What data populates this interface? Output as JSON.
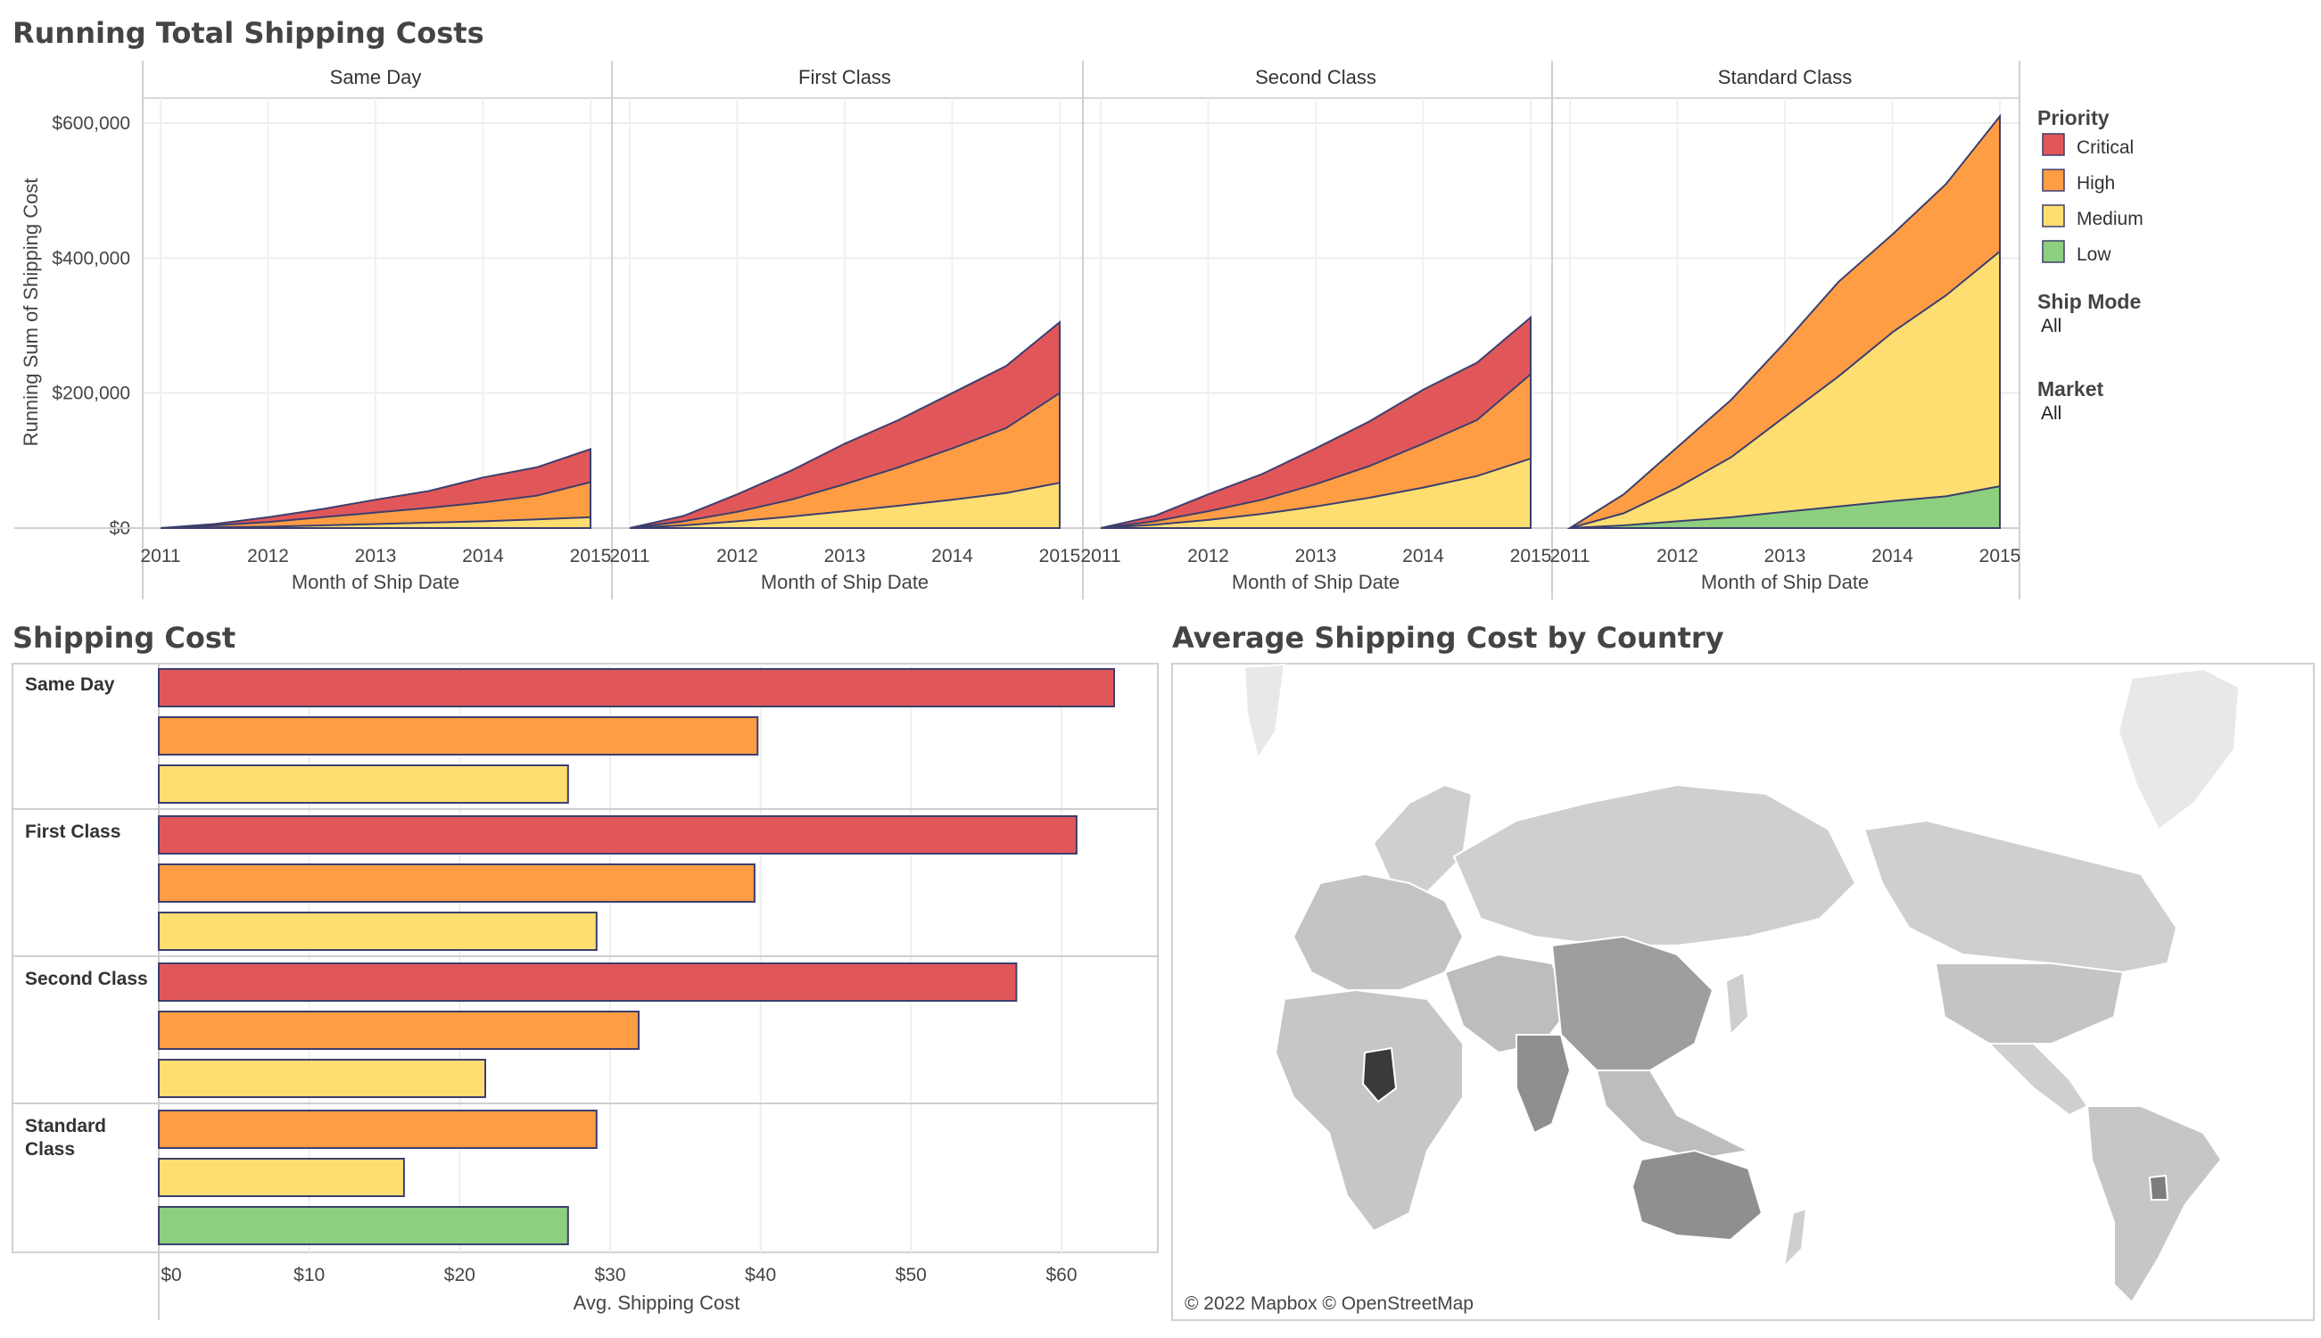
{
  "dashboard": {
    "running_total_title": "Running Total Shipping Costs",
    "shipping_cost_title": "Shipping Cost",
    "map_title": "Average Shipping Cost by Country",
    "map_attribution": "© 2022 Mapbox © OpenStreetMap",
    "colors": {
      "Critical": "#e15759",
      "High": "#ff9d45",
      "Medium": "#ffde71",
      "Low": "#8dcf7e",
      "outline": "#3b3f6e"
    }
  },
  "legend": {
    "title": "Priority",
    "items": [
      "Critical",
      "High",
      "Medium",
      "Low"
    ],
    "filters": [
      {
        "label": "Ship Mode",
        "value": "All"
      },
      {
        "label": "Market",
        "value": "All"
      }
    ]
  },
  "chart_data": [
    {
      "type": "area",
      "title": "Running Total Shipping Costs",
      "stacked": true,
      "xlabel": "Month of Ship Date",
      "ylabel": "Running Sum of Shipping Cost",
      "y_ticks": [
        "$0",
        "$200,000",
        "$400,000",
        "$600,000"
      ],
      "ylim": [
        0,
        600000
      ],
      "x_ticks": [
        "2011",
        "2012",
        "2013",
        "2014",
        "2015"
      ],
      "x": [
        "2011-01",
        "2011-07",
        "2012-01",
        "2012-07",
        "2013-01",
        "2013-07",
        "2014-01",
        "2014-07",
        "2015-01"
      ],
      "panels": [
        {
          "name": "Same Day",
          "series": [
            {
              "name": "Medium",
              "values": [
                0,
                1000,
                2000,
                4000,
                6000,
                8000,
                10000,
                13000,
                16000
              ]
            },
            {
              "name": "High",
              "values": [
                0,
                4000,
                9000,
                16000,
                23000,
                30000,
                38000,
                48000,
                68000
              ]
            },
            {
              "name": "Critical",
              "values": [
                0,
                6000,
                16000,
                28000,
                42000,
                55000,
                75000,
                90000,
                117000
              ]
            }
          ]
        },
        {
          "name": "First Class",
          "series": [
            {
              "name": "Medium",
              "values": [
                0,
                4000,
                10000,
                17000,
                25000,
                33000,
                42000,
                52000,
                67000
              ]
            },
            {
              "name": "High",
              "values": [
                0,
                10000,
                24000,
                42000,
                65000,
                90000,
                118000,
                148000,
                200000
              ]
            },
            {
              "name": "Critical",
              "values": [
                0,
                18000,
                50000,
                85000,
                125000,
                160000,
                200000,
                240000,
                305000
              ]
            }
          ]
        },
        {
          "name": "Second Class",
          "series": [
            {
              "name": "Medium",
              "values": [
                0,
                5000,
                12000,
                21000,
                32000,
                45000,
                60000,
                77000,
                103000
              ]
            },
            {
              "name": "High",
              "values": [
                0,
                10000,
                25000,
                42000,
                65000,
                92000,
                125000,
                160000,
                228000
              ]
            },
            {
              "name": "Critical",
              "values": [
                0,
                18000,
                50000,
                80000,
                118000,
                158000,
                205000,
                245000,
                312000
              ]
            }
          ]
        },
        {
          "name": "Standard Class",
          "series": [
            {
              "name": "Low",
              "values": [
                0,
                4000,
                10000,
                16000,
                24000,
                32000,
                40000,
                47000,
                62000
              ]
            },
            {
              "name": "Medium",
              "values": [
                0,
                22000,
                60000,
                105000,
                165000,
                225000,
                290000,
                345000,
                410000
              ]
            },
            {
              "name": "High",
              "values": [
                0,
                50000,
                120000,
                190000,
                275000,
                365000,
                435000,
                510000,
                610000
              ]
            }
          ]
        }
      ]
    },
    {
      "type": "bar",
      "orientation": "horizontal",
      "title": "Shipping Cost",
      "xlabel": "Avg. Shipping Cost",
      "x_ticks": [
        "$0",
        "$10",
        "$20",
        "$30",
        "$40",
        "$50",
        "$60"
      ],
      "xlim": [
        0,
        66
      ],
      "groups": [
        {
          "name": "Same Day",
          "bars": [
            {
              "priority": "Critical",
              "value": 63.5
            },
            {
              "priority": "High",
              "value": 39.8
            },
            {
              "priority": "Medium",
              "value": 27.2
            }
          ]
        },
        {
          "name": "First Class",
          "bars": [
            {
              "priority": "Critical",
              "value": 61
            },
            {
              "priority": "High",
              "value": 39.6
            },
            {
              "priority": "Medium",
              "value": 29.1
            }
          ]
        },
        {
          "name": "Second Class",
          "bars": [
            {
              "priority": "Critical",
              "value": 57
            },
            {
              "priority": "High",
              "value": 31.9
            },
            {
              "priority": "Medium",
              "value": 21.7
            }
          ]
        },
        {
          "name": "Standard Class",
          "bars": [
            {
              "priority": "High",
              "value": 29.1
            },
            {
              "priority": "Medium",
              "value": 16.3
            },
            {
              "priority": "Low",
              "value": 27.2
            }
          ]
        }
      ]
    }
  ]
}
